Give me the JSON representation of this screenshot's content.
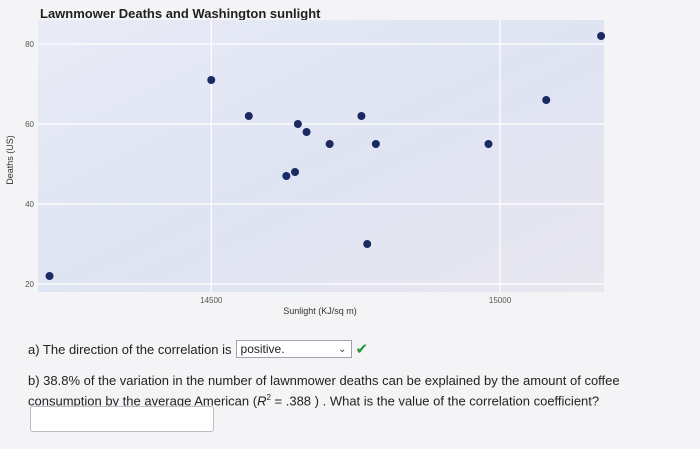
{
  "chart_data": {
    "type": "scatter",
    "title": "Lawnmower Deaths and Washington sunlight",
    "xlabel": "Sunlight (KJ/sq m)",
    "ylabel": "Deaths (US)",
    "xlim": [
      14200,
      15180
    ],
    "ylim": [
      18,
      86
    ],
    "xticks": [
      14500,
      15000
    ],
    "yticks": [
      20,
      40,
      60,
      80
    ],
    "grid": true,
    "x": [
      14220,
      14500,
      14565,
      14630,
      14645,
      14650,
      14665,
      14705,
      14760,
      14770,
      14785,
      14980,
      15080,
      15175
    ],
    "y": [
      22,
      71,
      62,
      47,
      48,
      60,
      58,
      55,
      62,
      30,
      55,
      55,
      66,
      82
    ],
    "point_color": "#1b2a63"
  },
  "question_a": {
    "text": "a) The direction of the correlation is",
    "selected": "positive.",
    "status_icon": "check-icon"
  },
  "question_b": {
    "text_1": "b) 38.8% of the variation in the number of lawnmower deaths can be explained by the amount of coffee consumption by the average American (",
    "r_symbol": "R",
    "r_exp": "2",
    "text_2": " = .388 ) . What is the value of the correlation coefficient?"
  },
  "answer_input": {
    "value": ""
  }
}
